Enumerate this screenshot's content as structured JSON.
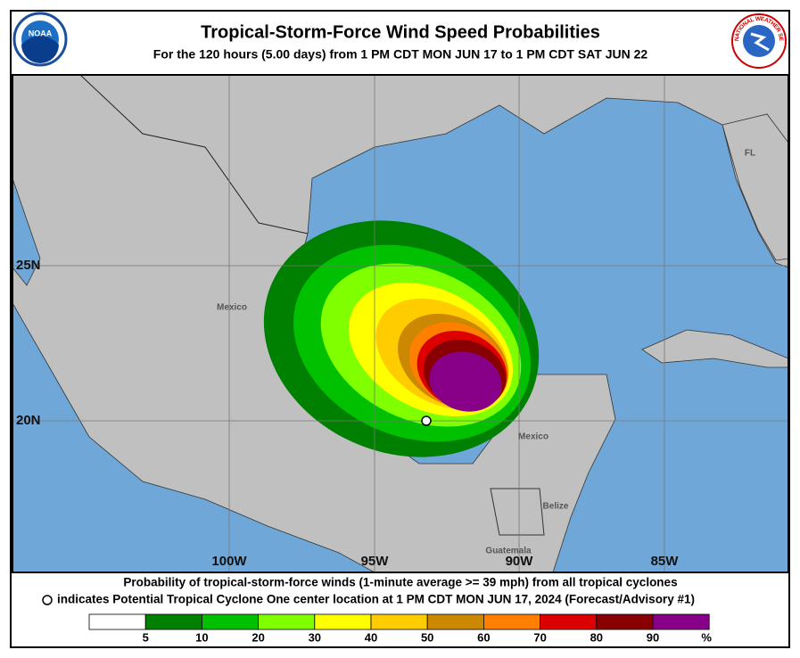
{
  "header": {
    "title": "Tropical-Storm-Force Wind Speed Probabilities",
    "subtitle": "For the 120 hours (5.00 days) from 1 PM CDT MON JUN 17 to 1 PM CDT SAT JUN 22",
    "left_logo": "NOAA",
    "right_logo": "NATIONAL WEATHER SERVICE"
  },
  "map": {
    "lat_labels": [
      "25N",
      "20N"
    ],
    "lon_labels": [
      "100W",
      "95W",
      "90W",
      "85W"
    ],
    "places": [
      "Mexico",
      "FL",
      "Mexico",
      "Belize",
      "Guatemala"
    ]
  },
  "footer": {
    "line1": "Probability of tropical-storm-force winds (1-minute average >= 39 mph) from all tropical cyclones",
    "line2": "indicates Potential Tropical Cyclone One center location at 1 PM CDT MON JUN 17, 2024 (Forecast/Advisory #1)"
  },
  "legend": {
    "colors": [
      "#ffffff",
      "#008000",
      "#00c000",
      "#80ff00",
      "#ffff00",
      "#ffcc00",
      "#cc8800",
      "#ff8000",
      "#dd0000",
      "#880000",
      "#880088"
    ],
    "labels": [
      "5",
      "10",
      "20",
      "30",
      "40",
      "50",
      "60",
      "70",
      "80",
      "90"
    ],
    "unit": "%"
  }
}
